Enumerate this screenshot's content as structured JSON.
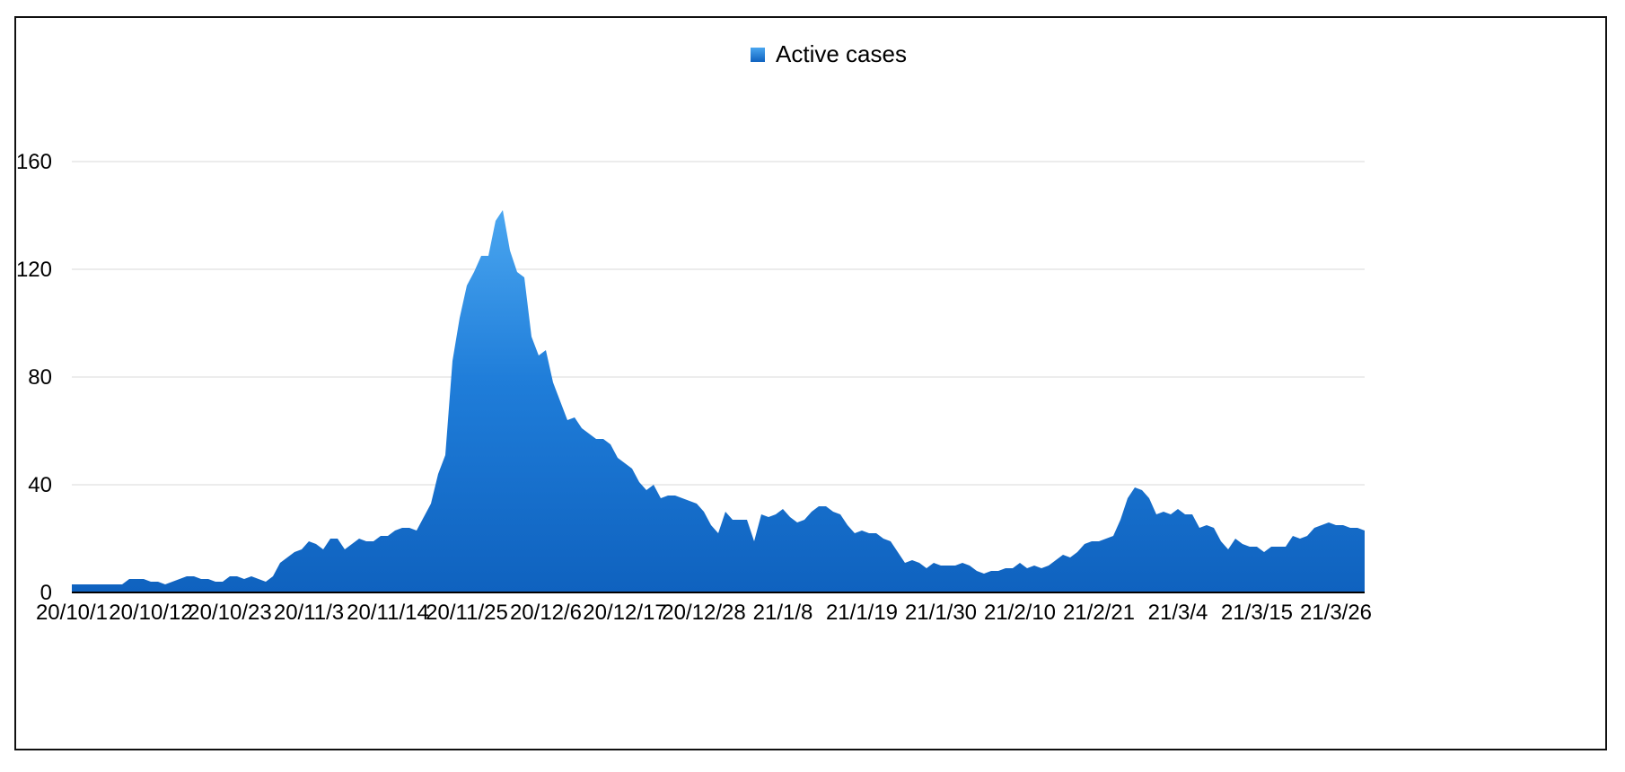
{
  "chart_data": {
    "type": "area",
    "title": "",
    "xlabel": "",
    "ylabel": "",
    "ylim": [
      0,
      180
    ],
    "y_ticks": [
      0,
      40,
      80,
      120,
      160
    ],
    "x_tick_labels": [
      "20/10/1",
      "20/10/12",
      "20/10/23",
      "20/11/3",
      "20/11/14",
      "20/11/25",
      "20/12/6",
      "20/12/17",
      "20/12/28",
      "21/1/8",
      "21/1/19",
      "21/1/30",
      "21/2/10",
      "21/2/21",
      "21/3/4",
      "21/3/15",
      "21/3/26"
    ],
    "grid": true,
    "legend_position": "top-center",
    "series": [
      {
        "name": "Active cases",
        "color": "#1a73d6",
        "values": [
          3,
          3,
          3,
          3,
          3,
          3,
          3,
          3,
          5,
          5,
          5,
          4,
          4,
          3,
          4,
          5,
          6,
          6,
          5,
          5,
          4,
          4,
          6,
          6,
          5,
          6,
          5,
          4,
          6,
          11,
          13,
          15,
          16,
          19,
          18,
          16,
          20,
          20,
          16,
          18,
          20,
          19,
          19,
          21,
          21,
          23,
          24,
          24,
          23,
          28,
          33,
          44,
          51,
          86,
          102,
          114,
          119,
          125,
          125,
          138,
          142,
          127,
          119,
          117,
          95,
          88,
          90,
          78,
          71,
          64,
          65,
          61,
          59,
          57,
          57,
          55,
          50,
          48,
          46,
          41,
          38,
          40,
          35,
          36,
          36,
          35,
          34,
          33,
          30,
          25,
          22,
          30,
          27,
          27,
          27,
          19,
          29,
          28,
          29,
          31,
          28,
          26,
          27,
          30,
          32,
          32,
          30,
          29,
          25,
          22,
          23,
          22,
          22,
          20,
          19,
          15,
          11,
          12,
          11,
          9,
          11,
          10,
          10,
          10,
          11,
          10,
          8,
          7,
          8,
          8,
          9,
          9,
          11,
          9,
          10,
          9,
          10,
          12,
          14,
          13,
          15,
          18,
          19,
          19,
          20,
          21,
          27,
          35,
          39,
          38,
          35,
          29,
          30,
          29,
          31,
          29,
          29,
          24,
          25,
          24,
          19,
          16,
          20,
          18,
          17,
          17,
          15,
          17,
          17,
          17,
          21,
          20,
          21,
          24,
          25,
          26,
          25,
          25,
          24,
          24,
          23
        ]
      }
    ]
  }
}
